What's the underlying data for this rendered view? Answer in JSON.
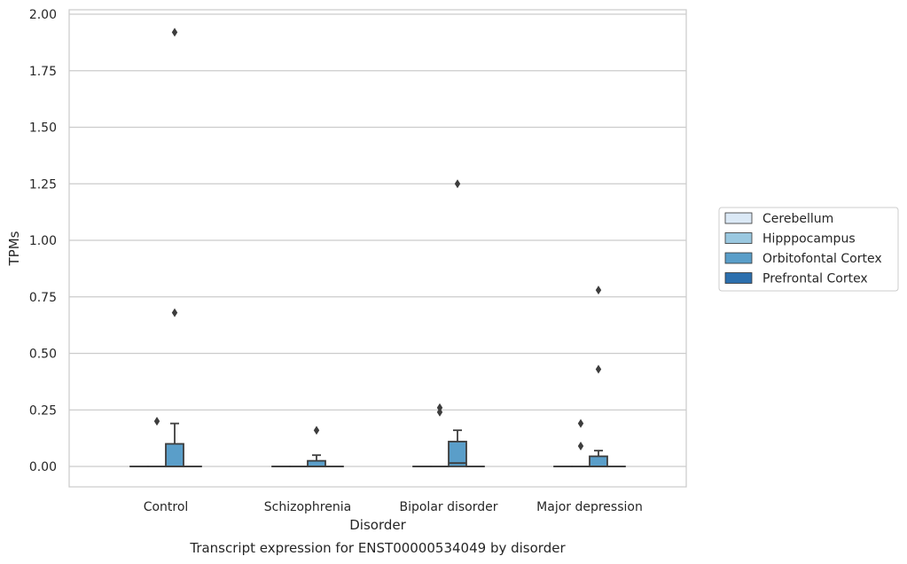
{
  "chart_data": {
    "type": "box",
    "xlabel": "Disorder",
    "ylabel": "TPMs",
    "caption": "Transcript expression for ENST00000534049 by disorder",
    "ylim": [
      -0.09,
      2.02
    ],
    "yticks": [
      "0.00",
      "0.25",
      "0.50",
      "0.75",
      "1.00",
      "1.25",
      "1.50",
      "1.75",
      "2.00"
    ],
    "grid": "horizontal",
    "legend_position": "right",
    "categories": [
      "Control",
      "Schizophrenia",
      "Bipolar disorder",
      "Major depression"
    ],
    "series": [
      {
        "name": "Cerebellum",
        "color": "#dbe9f6",
        "boxes": [
          {
            "q1": 0,
            "median": 0,
            "q3": 0,
            "whisker_low": 0,
            "whisker_high": 0,
            "outliers": []
          },
          {
            "q1": 0,
            "median": 0,
            "q3": 0,
            "whisker_low": 0,
            "whisker_high": 0,
            "outliers": []
          },
          {
            "q1": 0,
            "median": 0,
            "q3": 0,
            "whisker_low": 0,
            "whisker_high": 0,
            "outliers": []
          },
          {
            "q1": 0,
            "median": 0,
            "q3": 0,
            "whisker_low": 0,
            "whisker_high": 0,
            "outliers": []
          }
        ]
      },
      {
        "name": "Hipppocampus",
        "color": "#9ac8e0",
        "boxes": [
          {
            "q1": 0,
            "median": 0,
            "q3": 0,
            "whisker_low": 0,
            "whisker_high": 0,
            "outliers": [
              0.2
            ]
          },
          {
            "q1": 0,
            "median": 0,
            "q3": 0,
            "whisker_low": 0,
            "whisker_high": 0,
            "outliers": []
          },
          {
            "q1": 0,
            "median": 0,
            "q3": 0,
            "whisker_low": 0,
            "whisker_high": 0,
            "outliers": [
              0.24,
              0.26
            ]
          },
          {
            "q1": 0,
            "median": 0,
            "q3": 0,
            "whisker_low": 0,
            "whisker_high": 0,
            "outliers": [
              0.09,
              0.19
            ]
          }
        ]
      },
      {
        "name": "Orbitofontal Cortex",
        "color": "#5a9ec9",
        "boxes": [
          {
            "q1": 0,
            "median": 0,
            "q3": 0.1,
            "whisker_low": 0,
            "whisker_high": 0.19,
            "outliers": [
              0.68,
              1.92
            ]
          },
          {
            "q1": 0,
            "median": 0,
            "q3": 0.025,
            "whisker_low": 0,
            "whisker_high": 0.05,
            "outliers": [
              0.16
            ]
          },
          {
            "q1": 0,
            "median": 0.015,
            "q3": 0.11,
            "whisker_low": 0,
            "whisker_high": 0.16,
            "outliers": [
              1.25
            ]
          },
          {
            "q1": 0,
            "median": 0,
            "q3": 0.045,
            "whisker_low": 0,
            "whisker_high": 0.07,
            "outliers": [
              0.43,
              0.78
            ]
          }
        ]
      },
      {
        "name": "Prefrontal Cortex",
        "color": "#2c6fad",
        "boxes": [
          {
            "q1": 0,
            "median": 0,
            "q3": 0,
            "whisker_low": 0,
            "whisker_high": 0,
            "outliers": []
          },
          {
            "q1": 0,
            "median": 0,
            "q3": 0,
            "whisker_low": 0,
            "whisker_high": 0,
            "outliers": []
          },
          {
            "q1": 0,
            "median": 0,
            "q3": 0,
            "whisker_low": 0,
            "whisker_high": 0,
            "outliers": []
          },
          {
            "q1": 0,
            "median": 0,
            "q3": 0,
            "whisker_low": 0,
            "whisker_high": 0,
            "outliers": []
          }
        ]
      }
    ]
  }
}
